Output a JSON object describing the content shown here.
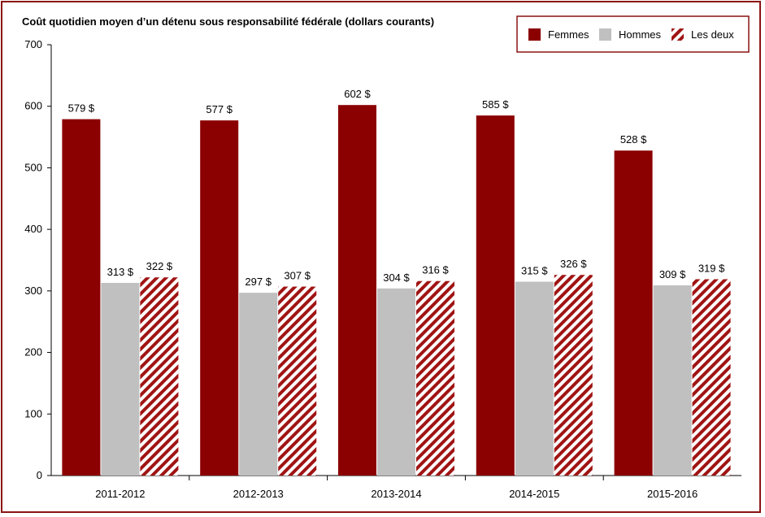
{
  "chart_data": {
    "type": "bar",
    "title": "Coût quotidien moyen d’un détenu sous responsabilité fédérale (dollars courants)",
    "categories": [
      "2011-2012",
      "2012-2013",
      "2013-2014",
      "2014-2015",
      "2015-2016"
    ],
    "series": [
      {
        "name": "Femmes",
        "values": [
          579,
          577,
          602,
          585,
          528
        ],
        "labels": [
          "579 $",
          "577 $",
          "602 $",
          "585 $",
          "528 $"
        ]
      },
      {
        "name": "Hommes",
        "values": [
          313,
          297,
          304,
          315,
          309
        ],
        "labels": [
          "313 $",
          "297 $",
          "304 $",
          "315 $",
          "309 $"
        ]
      },
      {
        "name": "Les deux",
        "values": [
          322,
          307,
          316,
          326,
          319
        ],
        "labels": [
          "322 $",
          "307 $",
          "316 $",
          "326 $",
          "319 $"
        ]
      }
    ],
    "ylim": [
      0,
      700
    ],
    "yticks": [
      "0",
      "100",
      "200",
      "300",
      "400",
      "500",
      "600",
      "700"
    ],
    "legend_position": "top-right",
    "grid": false
  },
  "colors": {
    "femmes": "#8b0000",
    "hommes": "#c0c0c0",
    "les_deux": "#a01414",
    "border": "#8b1414"
  }
}
